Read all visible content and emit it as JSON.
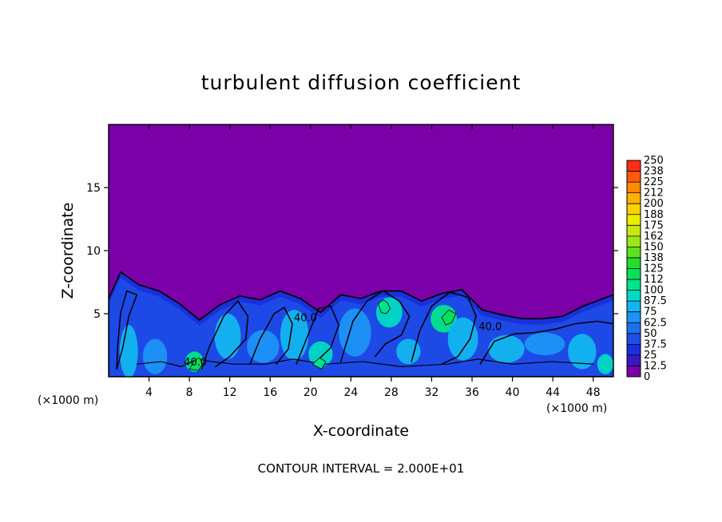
{
  "chart_data": {
    "type": "heatmap",
    "title": "turbulent diffusion coefficient",
    "xlabel": "X-coordinate",
    "ylabel": "Z-coordinate",
    "x_unit": "(×1000 m)",
    "x_unit_right": "(×1000 m)",
    "footer": "CONTOUR INTERVAL = 2.000E+01",
    "xlim": [
      0,
      50
    ],
    "ylim": [
      0,
      20
    ],
    "x_ticks": [
      4,
      8,
      12,
      16,
      20,
      24,
      28,
      32,
      36,
      40,
      44,
      48
    ],
    "y_ticks": [
      5,
      10,
      15
    ],
    "colorbar": {
      "levels": [
        "0",
        "12.5",
        "25",
        "37.5",
        "50",
        "62.5",
        "75",
        "87.5",
        "100",
        "112",
        "125",
        "138",
        "150",
        "162",
        "175",
        "188",
        "200",
        "212",
        "225",
        "238",
        "250"
      ],
      "colors": [
        "#7b00a8",
        "#3b16c4",
        "#1a2fdd",
        "#1f4fe8",
        "#1e70f0",
        "#1c93f5",
        "#12b5ee",
        "#00d9c4",
        "#00e48a",
        "#07e05a",
        "#22dd2a",
        "#5fe01e",
        "#9be619",
        "#c6ea10",
        "#eded00",
        "#f9d300",
        "#ffb100",
        "#ff8a00",
        "#ff5a0c",
        "#ff2d16",
        "#f08080"
      ]
    },
    "contour_interval": 20,
    "contour_labels": [
      {
        "x": 8.6,
        "z": 0.9,
        "text": "40.0"
      },
      {
        "x": 19.5,
        "z": 4.4,
        "text": "40.0"
      },
      {
        "x": 37.8,
        "z": 3.7,
        "text": "40.0"
      }
    ],
    "fields": {
      "upper_background_value": 0,
      "boundary_layer_depth_profile": [
        {
          "x": 0,
          "z": 6.2
        },
        {
          "x": 1.2,
          "z": 8.3
        },
        {
          "x": 3,
          "z": 7.3
        },
        {
          "x": 5,
          "z": 6.8
        },
        {
          "x": 7,
          "z": 5.8
        },
        {
          "x": 9,
          "z": 4.5
        },
        {
          "x": 11,
          "z": 5.7
        },
        {
          "x": 13,
          "z": 6.4
        },
        {
          "x": 15,
          "z": 6.1
        },
        {
          "x": 17,
          "z": 6.8
        },
        {
          "x": 19,
          "z": 6.2
        },
        {
          "x": 21,
          "z": 5.1
        },
        {
          "x": 23,
          "z": 6.5
        },
        {
          "x": 25,
          "z": 6.2
        },
        {
          "x": 27,
          "z": 6.8
        },
        {
          "x": 29,
          "z": 6.8
        },
        {
          "x": 31,
          "z": 6.0
        },
        {
          "x": 33,
          "z": 6.6
        },
        {
          "x": 35,
          "z": 6.9
        },
        {
          "x": 37,
          "z": 5.3
        },
        {
          "x": 39,
          "z": 4.9
        },
        {
          "x": 41,
          "z": 4.6
        },
        {
          "x": 43,
          "z": 4.6
        },
        {
          "x": 45,
          "z": 4.8
        },
        {
          "x": 47,
          "z": 5.6
        },
        {
          "x": 50,
          "z": 6.5
        }
      ]
    }
  }
}
